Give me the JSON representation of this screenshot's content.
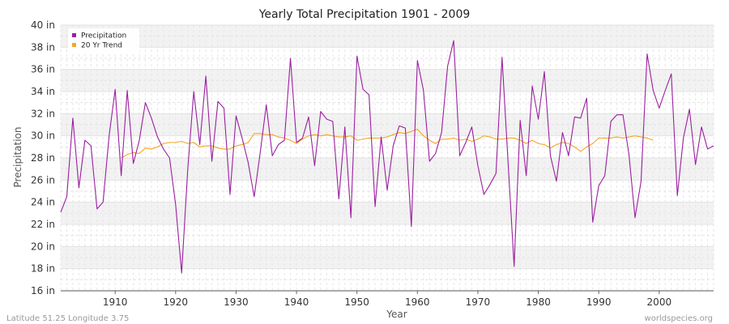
{
  "chart_data": {
    "type": "line",
    "title": "Yearly Total Precipitation 1901 - 2009",
    "xlabel": "Year",
    "ylabel": "Precipitation",
    "xlim": [
      1901,
      2009
    ],
    "ylim": [
      16,
      40
    ],
    "y_ticks": [
      16,
      18,
      20,
      22,
      24,
      26,
      28,
      30,
      32,
      34,
      36,
      38,
      40
    ],
    "y_tick_labels": [
      "16 in",
      "18 in",
      "20 in",
      "22 in",
      "24 in",
      "26 in",
      "28 in",
      "30 in",
      "32 in",
      "34 in",
      "36 in",
      "38 in",
      "40 in"
    ],
    "x_ticks": [
      1910,
      1920,
      1930,
      1940,
      1950,
      1960,
      1970,
      1980,
      1990,
      2000
    ],
    "x_tick_labels": [
      "1910",
      "1920",
      "1930",
      "1940",
      "1950",
      "1960",
      "1970",
      "1980",
      "1990",
      "2000"
    ],
    "grid": true,
    "legend_position": "top-left",
    "series": [
      {
        "name": "Precipitation",
        "color": "#9b1fa0",
        "x": [
          1901,
          1902,
          1903,
          1904,
          1905,
          1906,
          1907,
          1908,
          1909,
          1910,
          1911,
          1912,
          1913,
          1914,
          1915,
          1916,
          1917,
          1918,
          1919,
          1920,
          1921,
          1922,
          1923,
          1924,
          1925,
          1926,
          1927,
          1928,
          1929,
          1930,
          1931,
          1932,
          1933,
          1934,
          1935,
          1936,
          1937,
          1938,
          1939,
          1940,
          1941,
          1942,
          1943,
          1944,
          1945,
          1946,
          1947,
          1948,
          1949,
          1950,
          1951,
          1952,
          1953,
          1954,
          1955,
          1956,
          1957,
          1958,
          1959,
          1960,
          1961,
          1962,
          1963,
          1964,
          1965,
          1966,
          1967,
          1968,
          1969,
          1970,
          1971,
          1972,
          1973,
          1974,
          1975,
          1976,
          1977,
          1978,
          1979,
          1980,
          1981,
          1982,
          1983,
          1984,
          1985,
          1986,
          1987,
          1988,
          1989,
          1990,
          1991,
          1992,
          1993,
          1994,
          1995,
          1996,
          1997,
          1998,
          1999,
          2000,
          2001,
          2002,
          2003,
          2004,
          2005,
          2006,
          2007,
          2008,
          2009
        ],
        "values": [
          23.1,
          24.5,
          31.6,
          25.3,
          29.6,
          29.1,
          23.4,
          24.0,
          30.0,
          34.2,
          26.4,
          34.1,
          27.5,
          29.6,
          33.0,
          31.6,
          29.9,
          28.8,
          28.0,
          23.8,
          17.6,
          26.9,
          34.0,
          29.2,
          35.4,
          27.7,
          33.1,
          32.5,
          24.7,
          31.8,
          29.8,
          27.6,
          24.5,
          28.5,
          32.8,
          28.2,
          29.2,
          29.6,
          37.0,
          29.4,
          29.8,
          31.7,
          27.3,
          32.2,
          31.5,
          31.3,
          24.3,
          30.8,
          22.6,
          37.2,
          34.2,
          33.7,
          23.6,
          29.9,
          25.1,
          29.1,
          30.9,
          30.7,
          21.8,
          36.8,
          34.1,
          27.7,
          28.4,
          30.3,
          36.3,
          38.6,
          28.2,
          29.4,
          30.8,
          27.3,
          24.7,
          25.6,
          26.6,
          37.1,
          27.6,
          18.2,
          31.4,
          26.4,
          34.5,
          31.5,
          35.8,
          28.2,
          25.9,
          30.3,
          28.2,
          31.7,
          31.6,
          33.4,
          22.2,
          25.5,
          26.4,
          31.3,
          31.9,
          31.9,
          28.3,
          22.6,
          25.9,
          37.4,
          34.1,
          32.5,
          34.1,
          35.6,
          24.6,
          29.8,
          32.4,
          27.4,
          30.8,
          28.8,
          29.1
        ]
      },
      {
        "name": "20 Yr Trend",
        "color": "#f5a623",
        "x": [
          1911,
          1912,
          1913,
          1914,
          1915,
          1916,
          1917,
          1918,
          1919,
          1920,
          1921,
          1922,
          1923,
          1924,
          1925,
          1926,
          1927,
          1928,
          1929,
          1930,
          1931,
          1932,
          1933,
          1934,
          1935,
          1936,
          1937,
          1938,
          1939,
          1940,
          1941,
          1942,
          1943,
          1944,
          1945,
          1946,
          1947,
          1948,
          1949,
          1950,
          1951,
          1952,
          1953,
          1954,
          1955,
          1956,
          1957,
          1958,
          1959,
          1960,
          1961,
          1962,
          1963,
          1964,
          1965,
          1966,
          1967,
          1968,
          1969,
          1970,
          1971,
          1972,
          1973,
          1974,
          1975,
          1976,
          1977,
          1978,
          1979,
          1980,
          1981,
          1982,
          1983,
          1984,
          1985,
          1986,
          1987,
          1988,
          1989,
          1990,
          1991,
          1992,
          1993,
          1994,
          1995,
          1996,
          1997,
          1998,
          1999
        ],
        "values": [
          28.0,
          28.3,
          28.5,
          28.4,
          28.9,
          28.8,
          29.0,
          29.3,
          29.4,
          29.4,
          29.5,
          29.3,
          29.4,
          29.0,
          29.1,
          29.1,
          28.9,
          28.8,
          28.8,
          29.1,
          29.2,
          29.4,
          30.2,
          30.2,
          30.1,
          30.1,
          29.9,
          29.8,
          29.6,
          29.3,
          29.7,
          30.0,
          30.1,
          30.0,
          30.1,
          30.0,
          29.9,
          29.9,
          30.0,
          29.6,
          29.7,
          29.8,
          29.8,
          29.8,
          29.9,
          30.1,
          30.3,
          30.2,
          30.4,
          30.6,
          30.0,
          29.6,
          29.3,
          29.7,
          29.7,
          29.8,
          29.6,
          29.7,
          29.5,
          29.7,
          30.0,
          29.9,
          29.7,
          29.7,
          29.8,
          29.8,
          29.6,
          29.3,
          29.6,
          29.3,
          29.2,
          28.9,
          29.2,
          29.4,
          29.3,
          29.0,
          28.6,
          29.0,
          29.3,
          29.8,
          29.8,
          29.8,
          29.9,
          29.8,
          29.9,
          30.0,
          29.9,
          29.8,
          29.6
        ]
      }
    ]
  },
  "footer": {
    "location": "Latitude 51.25 Longitude 3.75",
    "source": "worldspecies.org"
  }
}
